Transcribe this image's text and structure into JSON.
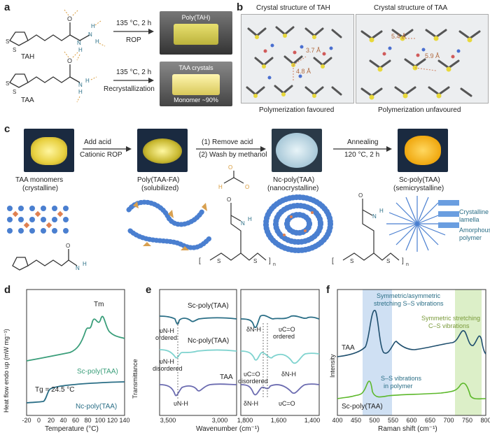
{
  "panel_a": {
    "label": "a",
    "tah_label": "TAH",
    "taa_label": "TAA",
    "arrow1_top": "135 °C, 2 h",
    "arrow1_bottom": "ROP",
    "arrow2_top": "135 °C, 2 h",
    "arrow2_bottom": "Recrystallization",
    "photo1_text": "Poly(TAH)",
    "photo2_text1": "TAA crystals",
    "photo2_text2": "Monomer ~90%"
  },
  "panel_b": {
    "label": "b",
    "title_left": "Crystal structure of TAH",
    "title_right": "Crystal structure of TAA",
    "dist_left1": "3.7 Å",
    "dist_left2": "4.8 Å",
    "dist_right1": "5.4 Å",
    "dist_right2": "5.9 Å",
    "caption_left": "Polymerization favoured",
    "caption_right": "Polymerization unfavoured"
  },
  "panel_c": {
    "label": "c",
    "step1_top": "Add acid",
    "step1_bottom": "Cationic ROP",
    "step2_top": "(1) Remove acid",
    "step2_bottom": "(2) Wash by methanol",
    "step3_top": "Annealing",
    "step3_bottom": "120 °C, 2 h",
    "item1_line1": "TAA monomers",
    "item1_line2": "(crystalline)",
    "item2_line1": "Poly(TAA-FA)",
    "item2_line2": "(solubilized)",
    "item3_line1": "Nc-poly(TAA)",
    "item3_line2": "(nanocrystalline)",
    "item4_line1": "Sc-poly(TAA)",
    "item4_line2": "(semicrystalline)",
    "lamella_label1": "Crystalline",
    "lamella_label2": "lamella",
    "amorphous_label1": "Amorphous",
    "amorphous_label2": "polymer"
  },
  "panel_d": {
    "label": "d",
    "xlabel": "Temperature (°C)",
    "ylabel": "Heat flow endo up (mW mg⁻¹)",
    "xticks": [
      "-20",
      "0",
      "20",
      "40",
      "60",
      "80",
      "100",
      "120",
      "140"
    ],
    "tm_label": "Tm",
    "tg_label": "Tg = 24.5 °C",
    "series1": "Sc-poly(TAA)",
    "series2": "Nc-poly(TAA)"
  },
  "panel_e": {
    "label": "e",
    "xlabel": "Wavenumber (cm⁻¹)",
    "ylabel": "Transmittance",
    "xticks_left": [
      "3,500",
      "3,000"
    ],
    "xticks_right": [
      "1,800",
      "1,600",
      "1,400"
    ],
    "series1": "Sc-poly(TAA)",
    "series2": "Nc-poly(TAA)",
    "series3": "TAA",
    "ann1": "υN-H",
    "ann1b": "ordered",
    "ann2": "υN-H",
    "ann2b": "disordered",
    "ann3": "υN-H",
    "ann4": "δN-H",
    "ann5": "υC=O",
    "ann5b": "ordered",
    "ann6": "υC=O",
    "ann6b": "disordered",
    "ann7": "δN-H",
    "ann8": "δN-H",
    "ann9": "υC=O"
  },
  "panel_f": {
    "label": "f",
    "xlabel": "Raman shift (cm⁻¹)",
    "ylabel": "Intensity",
    "xticks": [
      "400",
      "450",
      "500",
      "550",
      "600",
      "650",
      "700",
      "750",
      "800"
    ],
    "band1_line1": "Symmetric/asymmetric",
    "band1_line2": "stretching S–S vibrations",
    "band2_line1": "Symmetric stretching",
    "band2_line2": "C–S vibrations",
    "ann_ss1": "S–S vibrations",
    "ann_ss2": "in polymer",
    "series1": "TAA",
    "series2": "Sc-poly(TAA)",
    "color_blue_band": "#cfe0f3",
    "color_green_band": "#dcefc8"
  },
  "colors": {
    "teal_dark": "#2a6e86",
    "teal_green": "#3a9e7a",
    "light_teal": "#7fd3cf",
    "purple": "#6b6bb0",
    "green": "#5cb82a",
    "navy": "#1f4f6e"
  }
}
